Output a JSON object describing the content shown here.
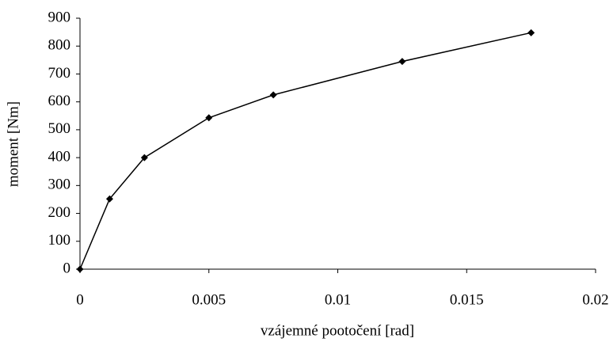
{
  "chart_data": {
    "type": "line",
    "x_label": "vzájemné pootočení [rad]",
    "y_label": "moment [Nm]",
    "x": [
      0,
      0.00115,
      0.0025,
      0.005,
      0.0075,
      0.0125,
      0.0175
    ],
    "series": [
      {
        "color": "#000000",
        "values": [
          0,
          252,
          400,
          543,
          625,
          745,
          848
        ]
      }
    ],
    "xlim": [
      0,
      0.02
    ],
    "xticks": [
      0,
      0.005,
      0.01,
      0.015,
      0.02
    ],
    "ylim": [
      0,
      900
    ],
    "yticks": [
      0,
      100,
      200,
      300,
      400,
      500,
      600,
      700,
      800,
      900
    ]
  }
}
